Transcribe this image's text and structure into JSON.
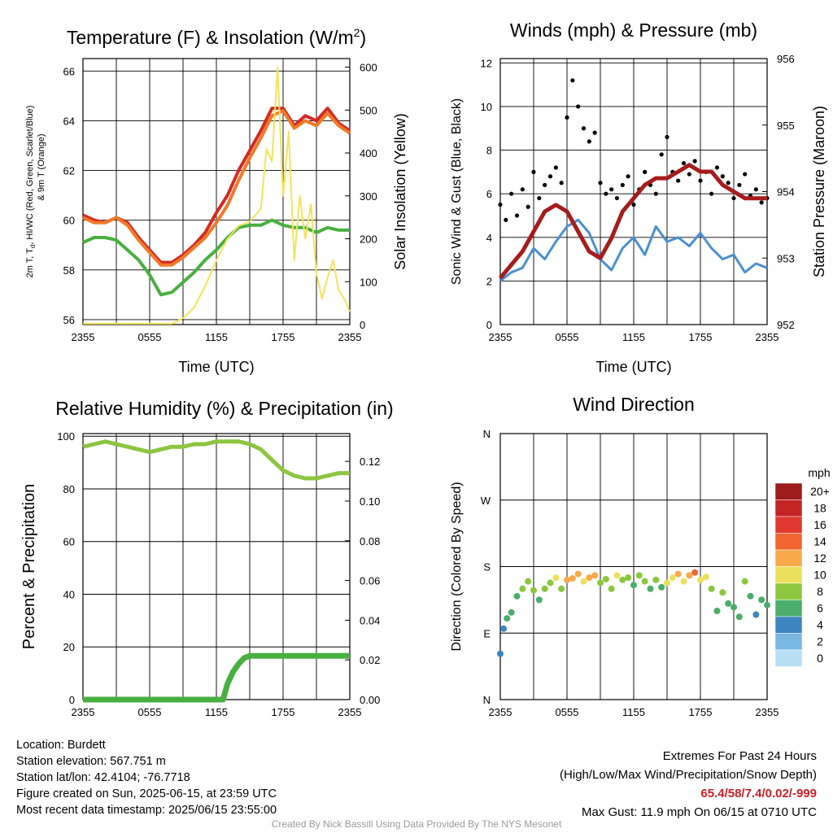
{
  "chart_data": [
    {
      "type": "line",
      "title": "Temperature (F) & Insolation (W/m",
      "title_sup": "2",
      "title_end": ")",
      "xlabel": "Time (UTC)",
      "ylabel_left": "2m T, T",
      "ylabel_left_sub": "d",
      "ylabel_left_rest": ", HI/WC (Red, Green, Scarlet/Blue)",
      "ylabel_left_line2": "& 9m T (Orange)",
      "ylabel_right": "Solar Insolation (Yellow)",
      "xticks": [
        "2355",
        "0555",
        "1155",
        "1755",
        "2355"
      ],
      "ylim_left": [
        55.8,
        66.5
      ],
      "yticks_left": [
        "56",
        "58",
        "60",
        "62",
        "64",
        "66"
      ],
      "ylim_right": [
        0,
        620
      ],
      "yticks_right": [
        "0",
        "100",
        "200",
        "300",
        "400",
        "500",
        "600"
      ],
      "series": [
        {
          "color": "#d42a22",
          "axis": "left",
          "x": [
            0,
            1,
            2,
            3,
            4,
            5,
            6,
            7,
            8,
            9,
            10,
            11,
            12,
            13,
            14,
            15,
            16,
            17,
            18,
            19,
            20,
            21,
            22,
            23,
            24
          ],
          "values": [
            60.2,
            60.0,
            59.9,
            60.1,
            59.9,
            59.3,
            58.8,
            58.3,
            58.3,
            58.6,
            59.0,
            59.5,
            60.3,
            61.0,
            62.0,
            62.8,
            63.6,
            64.5,
            64.5,
            63.8,
            64.2,
            64.0,
            64.5,
            63.9,
            63.6
          ]
        },
        {
          "color": "#f07a2a",
          "axis": "left",
          "x": [
            0,
            1,
            2,
            3,
            4,
            5,
            6,
            7,
            8,
            9,
            10,
            11,
            12,
            13,
            14,
            15,
            16,
            17,
            18,
            19,
            20,
            21,
            22,
            23,
            24
          ],
          "values": [
            60.1,
            59.9,
            59.9,
            60.1,
            59.8,
            59.2,
            58.7,
            58.2,
            58.2,
            58.5,
            58.9,
            59.3,
            59.9,
            60.6,
            61.6,
            62.5,
            63.3,
            64.2,
            64.4,
            63.7,
            64.0,
            63.8,
            64.3,
            63.8,
            63.5
          ]
        },
        {
          "color": "#48b041",
          "axis": "left",
          "x": [
            0,
            1,
            2,
            3,
            4,
            5,
            6,
            7,
            8,
            9,
            10,
            11,
            12,
            13,
            14,
            15,
            16,
            17,
            18,
            19,
            20,
            21,
            22,
            23,
            24
          ],
          "values": [
            59.1,
            59.3,
            59.3,
            59.2,
            58.8,
            58.4,
            57.8,
            57.0,
            57.1,
            57.5,
            57.9,
            58.4,
            58.8,
            59.3,
            59.7,
            59.8,
            59.8,
            60.0,
            59.8,
            59.7,
            59.7,
            59.5,
            59.7,
            59.6,
            59.6
          ]
        },
        {
          "color": "#f3e35a",
          "axis": "right",
          "x": [
            0,
            2,
            4,
            6,
            8,
            9,
            10,
            11,
            12,
            13,
            14,
            15,
            16,
            16.5,
            17,
            17.5,
            18,
            18.5,
            19,
            19.5,
            20,
            20.5,
            21,
            21.5,
            22,
            22.5,
            23,
            23.5,
            24
          ],
          "values": [
            2,
            2,
            2,
            2,
            2,
            15,
            40,
            90,
            150,
            200,
            230,
            240,
            270,
            410,
            380,
            600,
            300,
            450,
            150,
            300,
            200,
            280,
            120,
            60,
            110,
            150,
            80,
            60,
            30
          ]
        }
      ]
    },
    {
      "type": "scatter",
      "title": "Winds (mph) & Pressure (mb)",
      "xlabel": "Time (UTC)",
      "ylabel_left": "Sonic Wind & Gust (Blue, Black)",
      "ylabel_right": "Station Pressure (Maroon)",
      "xticks": [
        "2355",
        "0555",
        "1155",
        "1755",
        "2355"
      ],
      "ylim_left": [
        0,
        12.2
      ],
      "yticks_left": [
        "0",
        "2",
        "4",
        "6",
        "8",
        "10",
        "12"
      ],
      "ylim_right": [
        952,
        956
      ],
      "yticks_right": [
        "952",
        "953",
        "954",
        "955",
        "956"
      ],
      "series": [
        {
          "name_color": "#4a90d0",
          "kind": "line",
          "axis": "left",
          "x": [
            0,
            1,
            2,
            3,
            4,
            5,
            6,
            7,
            8,
            9,
            10,
            11,
            12,
            13,
            14,
            15,
            16,
            17,
            18,
            19,
            20,
            21,
            22,
            23,
            24
          ],
          "values": [
            2.0,
            2.4,
            2.6,
            3.5,
            3.0,
            3.8,
            4.5,
            4.8,
            4.2,
            3.0,
            2.5,
            3.5,
            4.0,
            3.2,
            4.5,
            3.8,
            4.0,
            3.6,
            4.2,
            3.5,
            3.0,
            3.2,
            2.4,
            2.8,
            2.6
          ]
        },
        {
          "name_color": "#000000",
          "kind": "points",
          "axis": "left",
          "x": [
            0,
            0.5,
            1,
            1.5,
            2,
            2.5,
            3,
            3.5,
            4,
            4.5,
            5,
            5.5,
            6,
            6.5,
            7,
            7.5,
            8,
            8.5,
            9,
            9.5,
            10,
            10.5,
            11,
            11.5,
            12,
            12.5,
            13,
            13.5,
            14,
            14.5,
            15,
            15.5,
            16,
            16.5,
            17,
            17.5,
            18,
            18.5,
            19,
            19.5,
            20,
            20.5,
            21,
            21.5,
            22,
            22.5,
            23,
            23.5,
            24
          ],
          "values": [
            5.5,
            4.8,
            6.0,
            5.0,
            6.2,
            5.4,
            7.0,
            5.8,
            6.4,
            6.8,
            7.2,
            6.5,
            9.5,
            11.2,
            10.0,
            9.0,
            8.4,
            8.8,
            6.5,
            6.0,
            6.2,
            5.8,
            6.4,
            6.8,
            5.5,
            6.2,
            7.0,
            6.4,
            6.0,
            7.8,
            8.6,
            7.0,
            6.6,
            7.4,
            6.9,
            7.5,
            6.6,
            7.0,
            6.0,
            7.2,
            6.8,
            6.5,
            5.8,
            6.4,
            6.9,
            5.9,
            6.2,
            5.6,
            5.8
          ]
        },
        {
          "name_color": "#a61c1c",
          "kind": "line",
          "axis": "right",
          "x": [
            0,
            1,
            2,
            3,
            4,
            5,
            6,
            7,
            8,
            9,
            10,
            11,
            12,
            13,
            14,
            15,
            16,
            17,
            18,
            19,
            20,
            21,
            22,
            23,
            24
          ],
          "values": [
            952.7,
            952.9,
            953.1,
            953.4,
            953.7,
            953.8,
            953.7,
            953.4,
            953.1,
            953.0,
            953.3,
            953.7,
            953.9,
            954.1,
            954.2,
            954.2,
            954.3,
            954.4,
            954.3,
            954.3,
            954.1,
            954.0,
            953.9,
            953.9,
            953.9
          ]
        }
      ]
    },
    {
      "type": "line",
      "title": "Relative Humidity (%) & Precipitation (in)",
      "ylabel_left": "Percent & Precipitation",
      "xticks": [
        "2355",
        "0555",
        "1155",
        "1755",
        "2355"
      ],
      "ylim_left": [
        0,
        101
      ],
      "yticks_left": [
        "0",
        "20",
        "40",
        "60",
        "80",
        "100"
      ],
      "ylim_right": [
        0,
        0.134
      ],
      "yticks_right": [
        "0.00",
        "0.02",
        "0.04",
        "0.06",
        "0.08",
        "0.10",
        "0.12"
      ],
      "series": [
        {
          "color": "#8cc63f",
          "axis": "left",
          "x": [
            0,
            1,
            2,
            3,
            4,
            5,
            6,
            7,
            8,
            9,
            10,
            11,
            12,
            13,
            14,
            15,
            16,
            17,
            18,
            19,
            20,
            21,
            22,
            23,
            24
          ],
          "values": [
            96,
            97,
            98,
            97,
            96,
            95,
            94,
            95,
            96,
            96,
            97,
            97,
            98,
            98,
            98,
            97,
            95,
            91,
            87,
            85,
            84,
            84,
            85,
            86,
            86
          ]
        },
        {
          "color": "#48b041",
          "axis": "right",
          "x": [
            0,
            4,
            8,
            12.6,
            13,
            13.5,
            14,
            14.5,
            15,
            24
          ],
          "values": [
            0,
            0,
            0,
            0,
            0.008,
            0.014,
            0.018,
            0.021,
            0.022,
            0.022
          ]
        }
      ]
    },
    {
      "type": "scatter",
      "title": "Wind Direction",
      "ylabel_left": "Direction (Colored By Speed)",
      "xticks": [
        "2355",
        "0555",
        "1155",
        "1755",
        "2355"
      ],
      "yticks_left": [
        "N",
        "E",
        "S",
        "W",
        "N"
      ],
      "ylim_left": [
        0,
        360
      ],
      "legend_title": "mph",
      "legend_labels": [
        "20+",
        "18",
        "16",
        "14",
        "12",
        "10",
        "8",
        "6",
        "4",
        "2",
        "0"
      ],
      "legend_colors": [
        "#9e1c1c",
        "#c42424",
        "#e0382e",
        "#f0662e",
        "#f8a94a",
        "#ece05a",
        "#8cc63f",
        "#4aae6a",
        "#3d85c0",
        "#7ab8e4",
        "#b9dff5"
      ],
      "x": [
        0,
        0.3,
        0.6,
        1,
        1.5,
        2,
        2.5,
        3,
        3.5,
        4,
        4.5,
        5,
        5.5,
        6,
        6.5,
        7,
        7.5,
        8,
        8.5,
        9,
        9.5,
        10,
        10.5,
        11,
        11.5,
        12,
        12.5,
        13,
        13.5,
        14,
        14.5,
        15,
        15.5,
        16,
        16.5,
        17,
        17.5,
        18,
        18.5,
        19,
        19.5,
        20,
        20.5,
        21,
        21.5,
        22,
        22.5,
        23,
        23.5,
        24
      ],
      "values": [
        62,
        96,
        110,
        118,
        140,
        150,
        160,
        148,
        135,
        150,
        158,
        165,
        150,
        162,
        164,
        170,
        160,
        165,
        168,
        158,
        163,
        150,
        168,
        162,
        165,
        155,
        168,
        160,
        150,
        162,
        152,
        158,
        165,
        170,
        160,
        168,
        172,
        162,
        166,
        150,
        120,
        145,
        130,
        125,
        112,
        160,
        140,
        115,
        135,
        128
      ],
      "speeds": [
        2,
        2,
        3,
        3,
        3,
        4,
        4,
        4,
        3,
        4,
        4,
        5,
        4,
        6,
        6,
        6,
        5,
        6,
        6,
        4,
        4,
        4,
        5,
        4,
        4,
        3,
        4,
        4,
        3,
        4,
        3,
        5,
        5,
        6,
        5,
        6,
        7,
        5,
        5,
        4,
        3,
        4,
        3,
        3,
        3,
        4,
        3,
        2,
        3,
        3
      ]
    }
  ],
  "footer": {
    "location": "Location: Burdett",
    "elevation": "Station elevation: 567.751 m",
    "latlon": "Station lat/lon: 42.4104; -76.7718",
    "created": "Figure created on Sun, 2025-06-15, at 23:59 UTC",
    "recent": "Most recent data timestamp: 2025/06/15 23:55:00",
    "extremes_title": "Extremes For Past 24 Hours",
    "extremes_subtitle": "(High/Low/Max Wind/Precipitation/Snow Depth)",
    "extremes_values": "65.4/58/7.4/0.02/-999",
    "max_gust": "Max Gust: 11.9 mph On 06/15 at 0710 UTC",
    "credit": "Created By Nick Bassill Using Data Provided By The NYS Mesonet"
  }
}
